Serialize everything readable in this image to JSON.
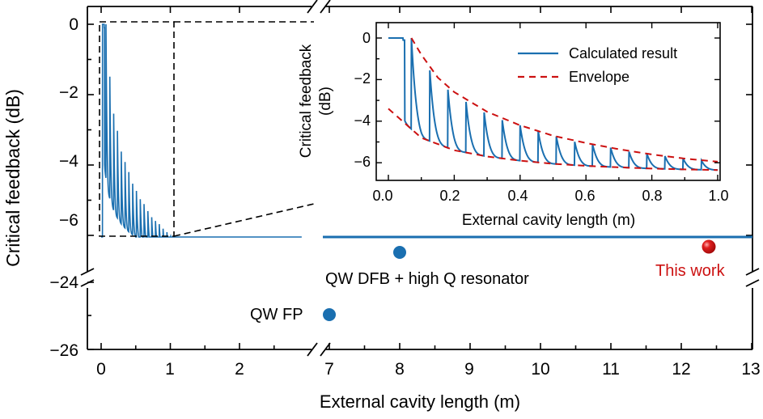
{
  "chart_data": [
    {
      "type": "line",
      "title": "",
      "xlabel": "External cavity length (m)",
      "ylabel": "Critical feedback (dB)",
      "axis_break_x": [
        2.9,
        7.0
      ],
      "axis_break_y": [
        -24.0,
        -6.5
      ],
      "x_ticks_left": [
        "0",
        "1",
        "2"
      ],
      "x_ticks_right": [
        "7",
        "8",
        "9",
        "10",
        "11",
        "12",
        "13"
      ],
      "y_ticks_upper": [
        "0",
        "−2",
        "−4",
        "−6"
      ],
      "y_ticks_lower": [
        "−24",
        "−26"
      ],
      "xlim_left": [
        -0.1,
        2.9
      ],
      "xlim_right": [
        7.0,
        13.0
      ],
      "ylim_upper": [
        -6.5,
        0.3
      ],
      "ylim_lower": [
        -26.0,
        -24.0
      ],
      "series": [
        {
          "name": "Calculated result",
          "color": "#1a6fb0",
          "style": "solid",
          "x": [
            0.02,
            0.05,
            0.1,
            0.2,
            0.3,
            0.5,
            0.8,
            1.0,
            1.5,
            2.0,
            2.5,
            2.9,
            7.0,
            13.0
          ],
          "y": [
            0.0,
            0.0,
            -1.0,
            -2.6,
            -3.6,
            -4.7,
            -5.6,
            -6.0,
            -6.3,
            -6.4,
            -6.48,
            -6.5,
            -6.5,
            -6.5
          ]
        }
      ],
      "points": [
        {
          "name": "QW DFB + high Q resonator",
          "x": 8.0,
          "y": -6.9,
          "color": "#1a6fb0"
        },
        {
          "name": "QW FP",
          "x": 7.0,
          "y": -25.0,
          "color": "#1a6fb0"
        },
        {
          "name": "This work",
          "x": 12.4,
          "y": -6.75,
          "color": "#cc1111"
        }
      ],
      "zoom_box": {
        "x": [
          0.0,
          1.05
        ],
        "y": [
          -6.45,
          0.1
        ]
      }
    },
    {
      "type": "line",
      "title": "inset",
      "xlabel": "External cavity length (m)",
      "ylabel": "Critical feedback (dB)",
      "x_ticks": [
        "0.0",
        "0.2",
        "0.4",
        "0.6",
        "0.8",
        "1.0"
      ],
      "y_ticks": [
        "0",
        "−2",
        "−4",
        "−6"
      ],
      "xlim": [
        -0.03,
        1.01
      ],
      "ylim": [
        -6.6,
        0.5
      ],
      "peak_spacing": 0.055,
      "first_peak": 0.07,
      "series": [
        {
          "name": "Calculated result",
          "color": "#1a6fb0",
          "style": "solid"
        },
        {
          "name": "Envelope",
          "color": "#cc1111",
          "style": "dashed",
          "upper_x": [
            0.07,
            0.1,
            0.15,
            0.2,
            0.3,
            0.4,
            0.5,
            0.6,
            0.7,
            0.8,
            0.9,
            1.0
          ],
          "upper_y": [
            0.0,
            -0.8,
            -1.9,
            -2.6,
            -3.55,
            -4.2,
            -4.7,
            -5.05,
            -5.35,
            -5.6,
            -5.8,
            -5.95
          ],
          "lower_x": [
            0.0,
            0.05,
            0.1,
            0.2,
            0.3,
            0.4,
            0.5,
            0.6,
            0.7,
            0.8,
            0.9,
            1.0
          ],
          "lower_y": [
            -3.4,
            -4.1,
            -4.8,
            -5.4,
            -5.7,
            -5.9,
            -6.05,
            -6.15,
            -6.22,
            -6.28,
            -6.32,
            -6.35
          ]
        }
      ]
    }
  ],
  "legend": {
    "calculated": "Calculated result",
    "envelope": "Envelope"
  },
  "labels": {
    "main_ylabel": "Critical feedback (dB)",
    "main_xlabel": "External cavity length (m)",
    "inset_ylabel_line1": "Critical feedback",
    "inset_ylabel_line2": "(dB)",
    "inset_xlabel": "External cavity length (m)",
    "qw_dfb": "QW DFB + high Q resonator",
    "qw_fp": "QW FP",
    "this_work": "This work"
  }
}
